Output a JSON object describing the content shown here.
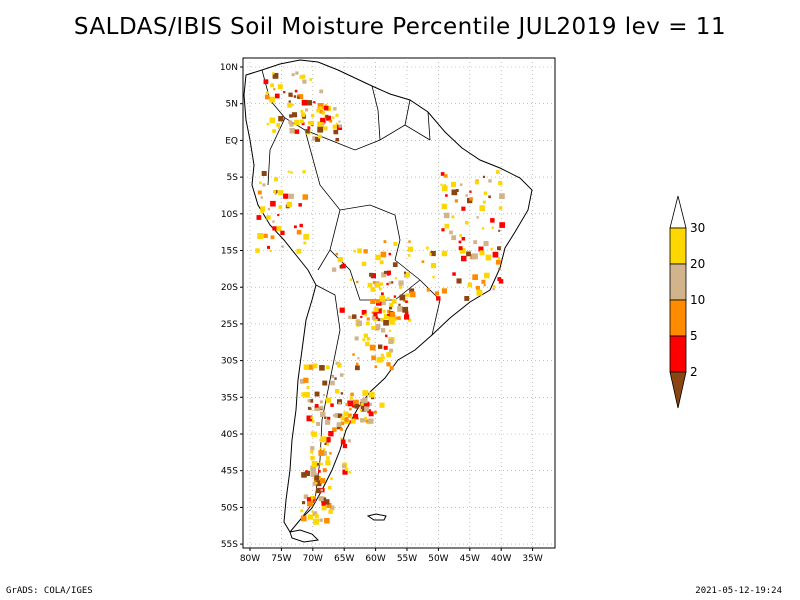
{
  "title": "SALDAS/IBIS Soil Moisture Percentile JUL2019 lev = 11",
  "footer": {
    "left": "GrADS: COLA/IGES",
    "right": "2021-05-12-19:24"
  },
  "map": {
    "lat_labels": [
      "10N",
      "5N",
      "EQ",
      "5S",
      "10S",
      "15S",
      "20S",
      "25S",
      "30S",
      "35S",
      "40S",
      "45S",
      "50S",
      "55S"
    ],
    "lon_labels": [
      "80W",
      "75W",
      "70W",
      "65W",
      "60W",
      "55W",
      "50W",
      "45W",
      "40W",
      "35W"
    ],
    "grid": true,
    "grid_style": "dotted",
    "projection": "lat-lon"
  },
  "colorbar": {
    "position": "right",
    "labels": [
      "2",
      "5",
      "10",
      "20",
      "30"
    ],
    "colors": {
      "below_2": "#8B4513",
      "2_to_5": "#ff0000",
      "5_to_10": "#ff8c00",
      "10_to_20": "#d2b48c",
      "20_to_30": "#ffd700",
      "above_30": "#ffffff"
    }
  }
}
